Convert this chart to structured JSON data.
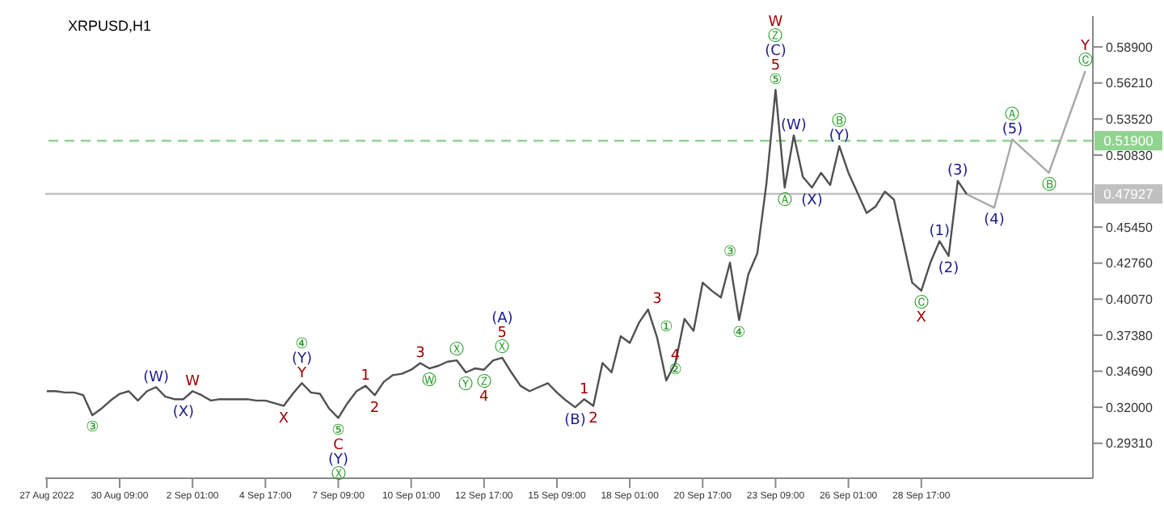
{
  "chart_data": {
    "type": "line",
    "title": "XRPUSD,H1",
    "xlim": [
      "2022-08-27T15:40",
      "2022-10-04T23:40"
    ],
    "xticks": [
      {
        "value": "2022-08-27T17:00",
        "label": "27 Aug 2022"
      },
      {
        "value": "2022-08-30T09:00",
        "label": "30 Aug 09:00"
      },
      {
        "value": "2022-09-02T01:00",
        "label": "2 Sep 01:00"
      },
      {
        "value": "2022-09-04T17:00",
        "label": "4 Sep 17:00"
      },
      {
        "value": "2022-09-07T09:00",
        "label": "7 Sep 09:00"
      },
      {
        "value": "2022-09-10T01:00",
        "label": "10 Sep 01:00"
      },
      {
        "value": "2022-09-12T17:00",
        "label": "12 Sep 17:00"
      },
      {
        "value": "2022-09-15T09:00",
        "label": "15 Sep 09:00"
      },
      {
        "value": "2022-09-18T01:00",
        "label": "18 Sep 01:00"
      },
      {
        "value": "2022-09-20T17:00",
        "label": "20 Sep 17:00"
      },
      {
        "value": "2022-09-23T09:00",
        "label": "23 Sep 09:00"
      },
      {
        "value": "2022-09-26T01:00",
        "label": "26 Sep 01:00"
      },
      {
        "value": "2022-09-28T17:00",
        "label": "28 Sep 17:00"
      }
    ],
    "ylim": [
      0.267,
      0.612
    ],
    "yticks": [
      {
        "value": 0.2931,
        "label": "0.29310"
      },
      {
        "value": 0.32,
        "label": "0.32000"
      },
      {
        "value": 0.3469,
        "label": "0.34690"
      },
      {
        "value": 0.3738,
        "label": "0.37380"
      },
      {
        "value": 0.4007,
        "label": "0.40070"
      },
      {
        "value": 0.4276,
        "label": "0.42760"
      },
      {
        "value": 0.4545,
        "label": "0.45450"
      },
      {
        "value": 0.5083,
        "label": "0.50830"
      },
      {
        "value": 0.5352,
        "label": "0.53520"
      },
      {
        "value": 0.5621,
        "label": "0.56210"
      },
      {
        "value": 0.589,
        "label": "0.58900"
      }
    ],
    "grid": false,
    "legend": false,
    "marker": "none",
    "series": [
      {
        "color": "#505050",
        "line_style": "solid",
        "x": [
          "2022-08-27T17:00",
          "2022-08-28T01:00",
          "2022-08-28T09:00",
          "2022-08-28T17:00",
          "2022-08-29T01:00",
          "2022-08-29T09:00",
          "2022-08-29T17:00",
          "2022-08-30T01:00",
          "2022-08-30T09:00",
          "2022-08-30T17:00",
          "2022-08-31T01:00",
          "2022-08-31T09:00",
          "2022-08-31T17:00",
          "2022-09-01T01:00",
          "2022-09-01T09:00",
          "2022-09-01T17:00",
          "2022-09-02T01:00",
          "2022-09-02T09:00",
          "2022-09-02T17:00",
          "2022-09-03T01:00",
          "2022-09-03T09:00",
          "2022-09-03T17:00",
          "2022-09-04T01:00",
          "2022-09-04T09:00",
          "2022-09-04T17:00",
          "2022-09-05T01:00",
          "2022-09-05T09:00",
          "2022-09-05T17:00",
          "2022-09-06T01:00",
          "2022-09-06T09:00",
          "2022-09-06T17:00",
          "2022-09-07T01:00",
          "2022-09-07T09:00",
          "2022-09-07T17:00",
          "2022-09-08T01:00",
          "2022-09-08T09:00",
          "2022-09-08T17:00",
          "2022-09-09T01:00",
          "2022-09-09T09:00",
          "2022-09-09T17:00",
          "2022-09-10T01:00",
          "2022-09-10T09:00",
          "2022-09-10T17:00",
          "2022-09-11T01:00",
          "2022-09-11T09:00",
          "2022-09-11T17:00",
          "2022-09-12T01:00",
          "2022-09-12T09:00",
          "2022-09-12T17:00",
          "2022-09-13T01:00",
          "2022-09-13T09:00",
          "2022-09-13T17:00",
          "2022-09-14T01:00",
          "2022-09-14T09:00",
          "2022-09-14T17:00",
          "2022-09-15T01:00",
          "2022-09-15T09:00",
          "2022-09-15T17:00",
          "2022-09-16T01:00",
          "2022-09-16T09:00",
          "2022-09-16T17:00",
          "2022-09-17T01:00",
          "2022-09-17T09:00",
          "2022-09-17T17:00",
          "2022-09-18T01:00",
          "2022-09-18T09:00",
          "2022-09-18T17:00",
          "2022-09-19T01:00",
          "2022-09-19T09:00",
          "2022-09-19T17:00",
          "2022-09-20T01:00",
          "2022-09-20T09:00",
          "2022-09-20T17:00",
          "2022-09-21T01:00",
          "2022-09-21T09:00",
          "2022-09-21T17:00",
          "2022-09-22T01:00",
          "2022-09-22T09:00",
          "2022-09-22T17:00",
          "2022-09-23T01:00",
          "2022-09-23T09:00",
          "2022-09-23T17:00",
          "2022-09-24T01:00",
          "2022-09-24T09:00",
          "2022-09-24T17:00",
          "2022-09-25T01:00",
          "2022-09-25T09:00",
          "2022-09-25T17:00",
          "2022-09-26T01:00",
          "2022-09-26T09:00",
          "2022-09-26T17:00",
          "2022-09-27T01:00",
          "2022-09-27T09:00",
          "2022-09-27T17:00",
          "2022-09-28T01:00",
          "2022-09-28T09:00",
          "2022-09-28T17:00",
          "2022-09-29T01:00",
          "2022-09-29T09:00",
          "2022-09-29T17:00",
          "2022-09-30T01:00",
          "2022-09-30T09:00"
        ],
        "values": [
          0.332,
          0.332,
          0.331,
          0.331,
          0.329,
          0.314,
          0.319,
          0.325,
          0.33,
          0.332,
          0.325,
          0.332,
          0.335,
          0.328,
          0.326,
          0.326,
          0.332,
          0.329,
          0.325,
          0.326,
          0.326,
          0.326,
          0.326,
          0.325,
          0.325,
          0.323,
          0.321,
          0.33,
          0.338,
          0.331,
          0.33,
          0.319,
          0.312,
          0.323,
          0.332,
          0.336,
          0.329,
          0.339,
          0.344,
          0.345,
          0.348,
          0.353,
          0.349,
          0.351,
          0.354,
          0.355,
          0.346,
          0.349,
          0.348,
          0.355,
          0.357,
          0.346,
          0.336,
          0.332,
          0.335,
          0.338,
          0.331,
          0.325,
          0.32,
          0.326,
          0.321,
          0.353,
          0.346,
          0.373,
          0.368,
          0.383,
          0.393,
          0.372,
          0.34,
          0.353,
          0.386,
          0.377,
          0.413,
          0.407,
          0.402,
          0.428,
          0.385,
          0.419,
          0.435,
          0.487,
          0.557,
          0.484,
          0.523,
          0.492,
          0.484,
          0.495,
          0.486,
          0.515,
          0.495,
          0.48,
          0.465,
          0.47,
          0.481,
          0.475,
          0.444,
          0.413,
          0.407,
          0.428,
          0.444,
          0.433,
          0.489,
          0.479
        ]
      },
      {
        "color": "#a8a8a8",
        "line_style": "solid",
        "x": [
          "2022-09-30T09:00",
          "2022-10-01T09:00",
          "2022-10-02T01:00",
          "2022-10-03T09:00",
          "2022-10-04T17:00"
        ],
        "values": [
          0.479,
          0.469,
          0.52,
          0.495,
          0.571
        ]
      }
    ],
    "ref_lines": [
      {
        "axis": "y",
        "value": 0.519,
        "label": "0.51900",
        "color": "#8fd48f",
        "line_style": "dashed"
      },
      {
        "axis": "y",
        "value": 0.47927,
        "label": "0.47927",
        "color": "#c0c0c0",
        "line_style": "solid"
      }
    ],
    "annotations": [
      {
        "text": "③",
        "x": "2022-08-29T09:00",
        "y": 0.314
      },
      {
        "text": "(W)",
        "x": "2022-08-31T17:00",
        "y": 0.335
      },
      {
        "text": "(X)",
        "x": "2022-09-01T17:00",
        "y": 0.326
      },
      {
        "text": "W",
        "x": "2022-09-02T01:00",
        "y": 0.332
      },
      {
        "text": "X",
        "x": "2022-09-05T09:00",
        "y": 0.321
      },
      {
        "text": "Y",
        "x": "2022-09-06T01:00",
        "y": 0.338
      },
      {
        "text": "(Y)",
        "x": "2022-09-06T01:00",
        "y": 0.338
      },
      {
        "text": "④",
        "x": "2022-09-06T01:00",
        "y": 0.338
      },
      {
        "text": "⑤",
        "x": "2022-09-07T09:00",
        "y": 0.312
      },
      {
        "text": "C",
        "x": "2022-09-07T09:00",
        "y": 0.312
      },
      {
        "text": "(Y)",
        "x": "2022-09-07T09:00",
        "y": 0.312
      },
      "Ⓧ",
      {
        "text": "1",
        "x": "2022-09-08T09:00",
        "y": 0.336
      },
      {
        "text": "2",
        "x": "2022-09-08T17:00",
        "y": 0.329
      },
      {
        "text": "3",
        "x": "2022-09-10T09:00",
        "y": 0.353
      },
      {
        "text": "Ⓦ",
        "x": "2022-09-10T17:00",
        "y": 0.349
      },
      {
        "text": "Ⓧ",
        "x": "2022-09-11T17:00",
        "y": 0.355
      },
      {
        "text": "Ⓨ",
        "x": "2022-09-12T01:00",
        "y": 0.346
      },
      {
        "text": "Ⓩ",
        "x": "2022-09-12T17:00",
        "y": 0.348
      },
      {
        "text": "4",
        "x": "2022-09-12T17:00",
        "y": 0.348
      },
      {
        "text": "Ⓧ",
        "x": "2022-09-13T09:00",
        "y": 0.357
      },
      {
        "text": "5",
        "x": "2022-09-13T09:00",
        "y": 0.357
      },
      {
        "text": "(A)",
        "x": "2022-09-13T09:00",
        "y": 0.357
      },
      {
        "text": "(B)",
        "x": "2022-09-16T01:00",
        "y": 0.32
      },
      {
        "text": "1",
        "x": "2022-09-16T09:00",
        "y": 0.326
      },
      {
        "text": "2",
        "x": "2022-09-16T17:00",
        "y": 0.321
      },
      {
        "text": "3",
        "x": "2022-09-19T01:00",
        "y": 0.393
      },
      {
        "text": "①",
        "x": "2022-09-19T09:00",
        "y": 0.372
      },
      {
        "text": "②",
        "x": "2022-09-19T17:00",
        "y": 0.34
      },
      {
        "text": "4",
        "x": "2022-09-19T17:00",
        "y": 0.34
      },
      {
        "text": "③",
        "x": "2022-09-21T17:00",
        "y": 0.428
      },
      {
        "text": "④",
        "x": "2022-09-22T01:00",
        "y": 0.385
      },
      {
        "text": "⑤",
        "x": "2022-09-23T09:00",
        "y": 0.557
      },
      {
        "text": "5",
        "x": "2022-09-23T09:00",
        "y": 0.557
      },
      {
        "text": "(C)",
        "x": "2022-09-23T09:00",
        "y": 0.557
      },
      "Ⓩ",
      "W",
      {
        "text": "Ⓐ",
        "x": "2022-09-23T17:00",
        "y": 0.484
      },
      {
        "text": "(W)",
        "x": "2022-09-24T01:00",
        "y": 0.523
      },
      {
        "text": "(X)",
        "x": "2022-09-24T17:00",
        "y": 0.484
      },
      {
        "text": "(Y)",
        "x": "2022-09-25T17:00",
        "y": 0.515
      },
      {
        "text": "Ⓑ",
        "x": "2022-09-25T17:00",
        "y": 0.515
      },
      {
        "text": "Ⓒ",
        "x": "2022-09-28T17:00",
        "y": 0.407
      },
      {
        "text": "X",
        "x": "2022-09-28T17:00",
        "y": 0.407
      },
      {
        "text": "(1)",
        "x": "2022-09-29T09:00",
        "y": 0.444
      },
      {
        "text": "(2)",
        "x": "2022-09-29T17:00",
        "y": 0.433
      },
      {
        "text": "(3)",
        "x": "2022-09-30T01:00",
        "y": 0.489
      },
      {
        "text": "(4)",
        "x": "2022-10-01T09:00",
        "y": 0.469
      },
      {
        "text": "(5)",
        "x": "2022-10-02T01:00",
        "y": 0.52
      },
      {
        "text": "Ⓐ",
        "x": "2022-10-02T01:00",
        "y": 0.52
      },
      {
        "text": "Ⓑ",
        "x": "2022-10-03T09:00",
        "y": 0.495
      },
      {
        "text": "Ⓒ",
        "x": "2022-10-04T17:00",
        "y": 0.571
      },
      {
        "text": "Y",
        "x": "2022-10-04T17:00",
        "y": 0.571
      }
    ]
  }
}
